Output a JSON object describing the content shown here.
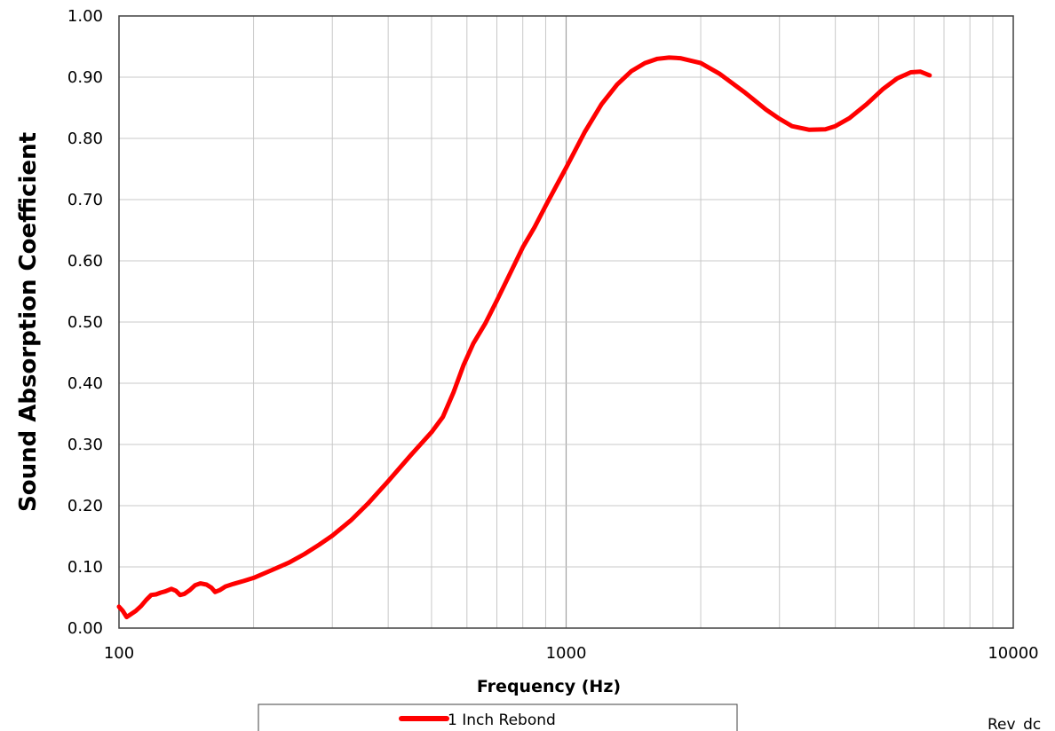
{
  "chart_data": {
    "type": "line",
    "title": "",
    "xlabel": "Frequency (Hz)",
    "ylabel": "Sound Absorption Coefficient",
    "x_scale": "log",
    "xlim": [
      100,
      10000
    ],
    "ylim": [
      0,
      1
    ],
    "x_tick_labels": [
      "100",
      "1000",
      "10000"
    ],
    "y_tick_labels": [
      "0.00",
      "0.10",
      "0.20",
      "0.30",
      "0.40",
      "0.50",
      "0.60",
      "0.70",
      "0.80",
      "0.90",
      "1.00"
    ],
    "grid": true,
    "legend": "bottom-center",
    "series": [
      {
        "name": "1 Inch Rebond",
        "color": "#ff0000",
        "points": [
          [
            100,
            0.035
          ],
          [
            102,
            0.028
          ],
          [
            104,
            0.018
          ],
          [
            106,
            0.022
          ],
          [
            109,
            0.028
          ],
          [
            112,
            0.036
          ],
          [
            115,
            0.046
          ],
          [
            118,
            0.054
          ],
          [
            121,
            0.055
          ],
          [
            124,
            0.058
          ],
          [
            127,
            0.06
          ],
          [
            131,
            0.064
          ],
          [
            134,
            0.061
          ],
          [
            137,
            0.054
          ],
          [
            140,
            0.056
          ],
          [
            144,
            0.062
          ],
          [
            148,
            0.07
          ],
          [
            152,
            0.073
          ],
          [
            157,
            0.071
          ],
          [
            161,
            0.066
          ],
          [
            164,
            0.059
          ],
          [
            168,
            0.062
          ],
          [
            173,
            0.068
          ],
          [
            180,
            0.072
          ],
          [
            190,
            0.077
          ],
          [
            200,
            0.082
          ],
          [
            220,
            0.095
          ],
          [
            240,
            0.107
          ],
          [
            260,
            0.121
          ],
          [
            280,
            0.136
          ],
          [
            300,
            0.151
          ],
          [
            330,
            0.176
          ],
          [
            360,
            0.203
          ],
          [
            400,
            0.24
          ],
          [
            450,
            0.283
          ],
          [
            500,
            0.32
          ],
          [
            530,
            0.345
          ],
          [
            560,
            0.385
          ],
          [
            590,
            0.43
          ],
          [
            620,
            0.465
          ],
          [
            660,
            0.498
          ],
          [
            700,
            0.535
          ],
          [
            750,
            0.58
          ],
          [
            800,
            0.622
          ],
          [
            850,
            0.655
          ],
          [
            900,
            0.69
          ],
          [
            950,
            0.722
          ],
          [
            1000,
            0.752
          ],
          [
            1100,
            0.81
          ],
          [
            1200,
            0.856
          ],
          [
            1300,
            0.888
          ],
          [
            1400,
            0.91
          ],
          [
            1500,
            0.923
          ],
          [
            1600,
            0.93
          ],
          [
            1700,
            0.932
          ],
          [
            1800,
            0.931
          ],
          [
            2000,
            0.923
          ],
          [
            2200,
            0.906
          ],
          [
            2500,
            0.876
          ],
          [
            2800,
            0.847
          ],
          [
            3000,
            0.832
          ],
          [
            3200,
            0.82
          ],
          [
            3500,
            0.814
          ],
          [
            3800,
            0.815
          ],
          [
            4000,
            0.82
          ],
          [
            4300,
            0.833
          ],
          [
            4700,
            0.856
          ],
          [
            5100,
            0.88
          ],
          [
            5500,
            0.898
          ],
          [
            5900,
            0.908
          ],
          [
            6200,
            0.909
          ],
          [
            6500,
            0.903
          ]
        ]
      }
    ]
  },
  "footer": {
    "text": "Rev_dc"
  }
}
